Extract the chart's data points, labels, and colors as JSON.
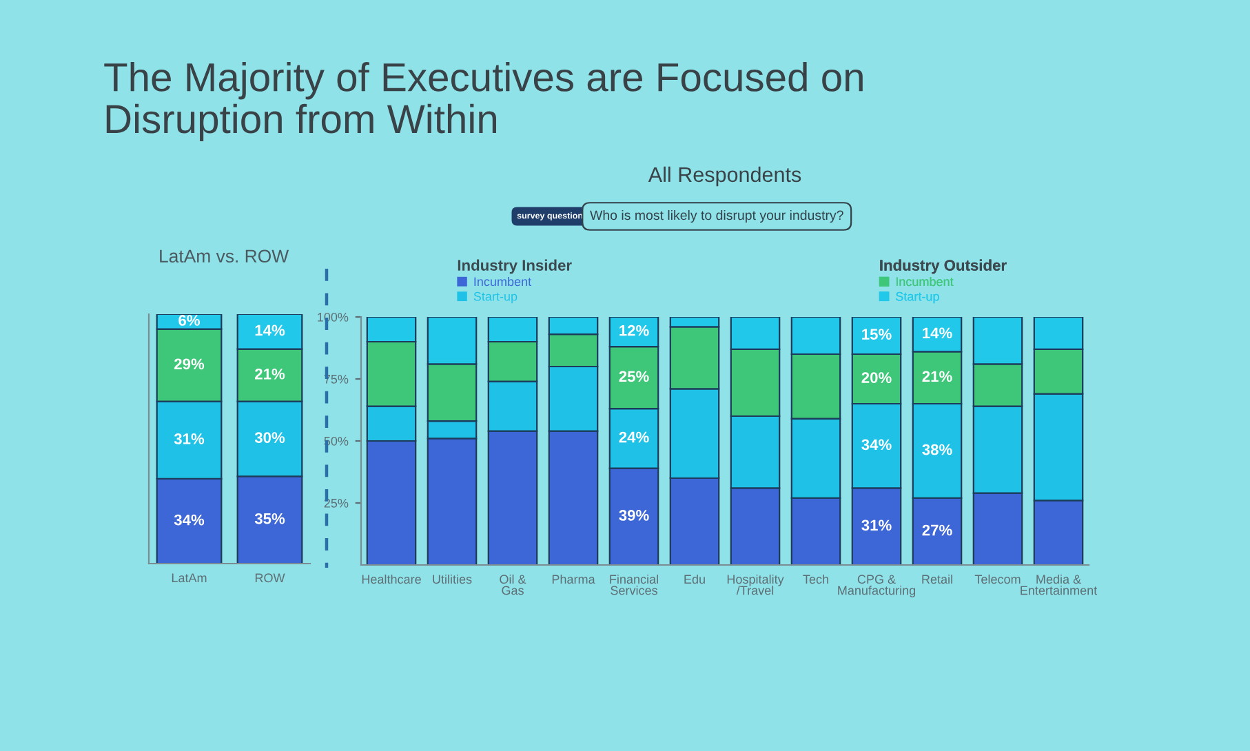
{
  "chart_data": [
    {
      "type": "bar",
      "title": "The Majority of Executives are Focused on\nDisruption from Within",
      "subtitle": "LatAm vs. ROW",
      "categories": [
        "LatAm",
        "ROW"
      ],
      "stacked": true,
      "tick_labels": "x",
      "series": [
        {
          "color": "#3d66d6",
          "values": [
            34,
            35
          ],
          "value_labels": [
            "34%",
            "35%"
          ]
        },
        {
          "color": "#1fc2e6",
          "values": [
            31,
            30
          ],
          "value_labels": [
            "31%",
            "30%"
          ]
        },
        {
          "color": "#3ec779",
          "values": [
            29,
            21
          ],
          "value_labels": [
            "29%",
            "21%"
          ]
        },
        {
          "color": "#22c8ea",
          "values": [
            6,
            14
          ],
          "value_labels": [
            "6%",
            "14%"
          ]
        }
      ]
    },
    {
      "type": "bar",
      "title": "All Respondents",
      "subtitle": "Who is most likely to disrupt your industry?",
      "annotations": [
        "survey question",
        "Industry Insider",
        "Industry Outsider"
      ],
      "categories": [
        "Healthcare",
        "Utilities",
        "Oil &\nGas",
        "Pharma",
        "Financial\nServices",
        "Edu",
        "Hospitality\n/Travel",
        "Tech",
        "CPG &\nManufacturing",
        "Retail",
        "Telecom",
        "Media &\nEntertainment"
      ],
      "stacked": true,
      "ylim": [
        0,
        100
      ],
      "yticks": [
        {
          "value": 25,
          "label": "25%"
        },
        {
          "value": 50,
          "label": "50%"
        },
        {
          "value": 75,
          "label": "75%"
        },
        {
          "value": 100,
          "label": "100%"
        }
      ],
      "legend": "top",
      "series": [
        {
          "name": "Incumbent",
          "color": "#3d66d6",
          "values": [
            50,
            51,
            54,
            54,
            39,
            35,
            31,
            27,
            31,
            27,
            29,
            26
          ],
          "value_labels": [
            null,
            null,
            null,
            null,
            "39%",
            null,
            null,
            null,
            "31%",
            "27%",
            null,
            null
          ]
        },
        {
          "name": "Start-up",
          "color": "#1fc2e6",
          "values": [
            14,
            7,
            20,
            26,
            24,
            36,
            29,
            32,
            34,
            38,
            35,
            43
          ],
          "value_labels": [
            null,
            null,
            null,
            null,
            "24%",
            null,
            null,
            null,
            "34%",
            "38%",
            null,
            null
          ]
        },
        {
          "name": "Incumbent",
          "color": "#3ec779",
          "values": [
            26,
            23,
            16,
            13,
            25,
            25,
            27,
            26,
            20,
            21,
            17,
            18
          ],
          "value_labels": [
            null,
            null,
            null,
            null,
            "25%",
            null,
            null,
            null,
            "20%",
            "21%",
            null,
            null
          ]
        },
        {
          "name": "Start-up",
          "color": "#22c8ea",
          "values": [
            10,
            19,
            10,
            7,
            12,
            4,
            13,
            15,
            15,
            14,
            19,
            13
          ],
          "value_labels": [
            null,
            null,
            null,
            null,
            "12%",
            null,
            null,
            null,
            "15%",
            "14%",
            null,
            null
          ]
        }
      ]
    }
  ]
}
